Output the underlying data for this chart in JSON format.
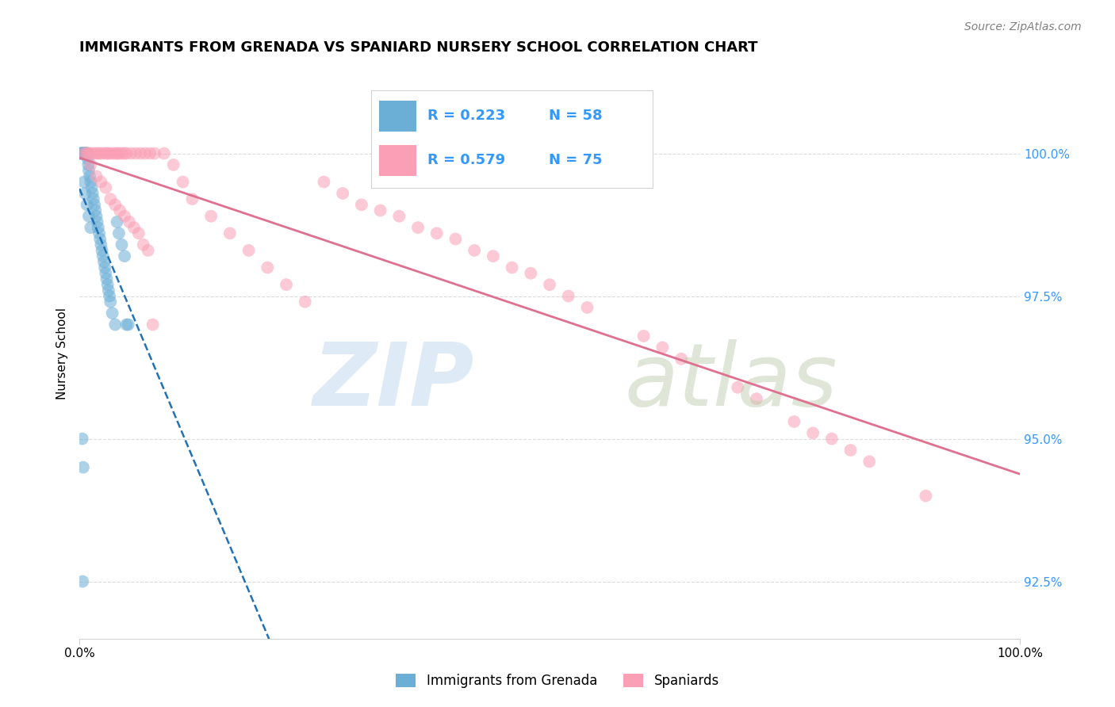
{
  "title": "IMMIGRANTS FROM GRENADA VS SPANIARD NURSERY SCHOOL CORRELATION CHART",
  "source": "Source: ZipAtlas.com",
  "xlabel": "",
  "ylabel": "Nursery School",
  "xlim": [
    0.0,
    100.0
  ],
  "ylim": [
    91.5,
    101.5
  ],
  "yticks": [
    92.5,
    95.0,
    97.5,
    100.0
  ],
  "ytick_labels": [
    "92.5%",
    "95.0%",
    "97.5%",
    "100.0%"
  ],
  "legend_labels": [
    "Immigrants from Grenada",
    "Spaniards"
  ],
  "legend_R": [
    0.223,
    0.579
  ],
  "legend_N": [
    58,
    75
  ],
  "blue_color": "#6baed6",
  "pink_color": "#fa9fb5",
  "blue_line_color": "#2171b5",
  "pink_line_color": "#e07090",
  "blue_x": [
    0.1,
    0.15,
    0.2,
    0.25,
    0.3,
    0.35,
    0.4,
    0.45,
    0.5,
    0.55,
    0.6,
    0.65,
    0.7,
    0.75,
    0.8,
    0.85,
    0.9,
    0.95,
    1.0,
    1.1,
    1.2,
    1.3,
    1.4,
    1.5,
    1.6,
    1.7,
    1.8,
    1.9,
    2.0,
    2.1,
    2.2,
    2.3,
    2.4,
    2.5,
    2.6,
    2.7,
    2.8,
    2.9,
    3.0,
    3.1,
    3.2,
    3.3,
    3.5,
    3.8,
    4.0,
    4.2,
    4.5,
    4.8,
    5.0,
    5.2,
    0.3,
    0.4,
    0.5,
    0.6,
    0.8,
    1.0,
    1.2,
    0.35
  ],
  "blue_y": [
    100.0,
    100.0,
    100.0,
    100.0,
    100.0,
    100.0,
    100.0,
    100.0,
    100.0,
    100.0,
    100.0,
    100.0,
    100.0,
    100.0,
    100.0,
    100.0,
    99.9,
    99.8,
    99.7,
    99.6,
    99.5,
    99.4,
    99.3,
    99.2,
    99.1,
    99.0,
    98.9,
    98.8,
    98.7,
    98.6,
    98.5,
    98.4,
    98.3,
    98.2,
    98.1,
    98.0,
    97.9,
    97.8,
    97.7,
    97.6,
    97.5,
    97.4,
    97.2,
    97.0,
    98.8,
    98.6,
    98.4,
    98.2,
    97.0,
    97.0,
    95.0,
    94.5,
    99.5,
    99.3,
    99.1,
    98.9,
    98.7,
    92.5
  ],
  "pink_x": [
    0.5,
    0.8,
    1.0,
    1.2,
    1.5,
    1.8,
    2.0,
    2.2,
    2.5,
    2.8,
    3.0,
    3.2,
    3.5,
    3.8,
    4.0,
    4.2,
    4.5,
    4.8,
    5.0,
    5.5,
    6.0,
    6.5,
    7.0,
    7.5,
    8.0,
    9.0,
    10.0,
    11.0,
    12.0,
    14.0,
    16.0,
    18.0,
    20.0,
    22.0,
    24.0,
    26.0,
    28.0,
    30.0,
    32.0,
    34.0,
    36.0,
    38.0,
    40.0,
    42.0,
    44.0,
    46.0,
    48.0,
    50.0,
    52.0,
    54.0,
    60.0,
    62.0,
    64.0,
    70.0,
    72.0,
    76.0,
    78.0,
    80.0,
    82.0,
    84.0,
    90.0,
    1.2,
    1.8,
    2.3,
    2.8,
    3.3,
    3.8,
    4.3,
    4.8,
    5.3,
    5.8,
    6.3,
    6.8,
    7.3,
    7.8
  ],
  "pink_y": [
    100.0,
    100.0,
    100.0,
    100.0,
    100.0,
    100.0,
    100.0,
    100.0,
    100.0,
    100.0,
    100.0,
    100.0,
    100.0,
    100.0,
    100.0,
    100.0,
    100.0,
    100.0,
    100.0,
    100.0,
    100.0,
    100.0,
    100.0,
    100.0,
    100.0,
    100.0,
    99.8,
    99.5,
    99.2,
    98.9,
    98.6,
    98.3,
    98.0,
    97.7,
    97.4,
    99.5,
    99.3,
    99.1,
    99.0,
    98.9,
    98.7,
    98.6,
    98.5,
    98.3,
    98.2,
    98.0,
    97.9,
    97.7,
    97.5,
    97.3,
    96.8,
    96.6,
    96.4,
    95.9,
    95.7,
    95.3,
    95.1,
    95.0,
    94.8,
    94.6,
    94.0,
    99.8,
    99.6,
    99.5,
    99.4,
    99.2,
    99.1,
    99.0,
    98.9,
    98.8,
    98.7,
    98.6,
    98.4,
    98.3,
    97.0
  ]
}
